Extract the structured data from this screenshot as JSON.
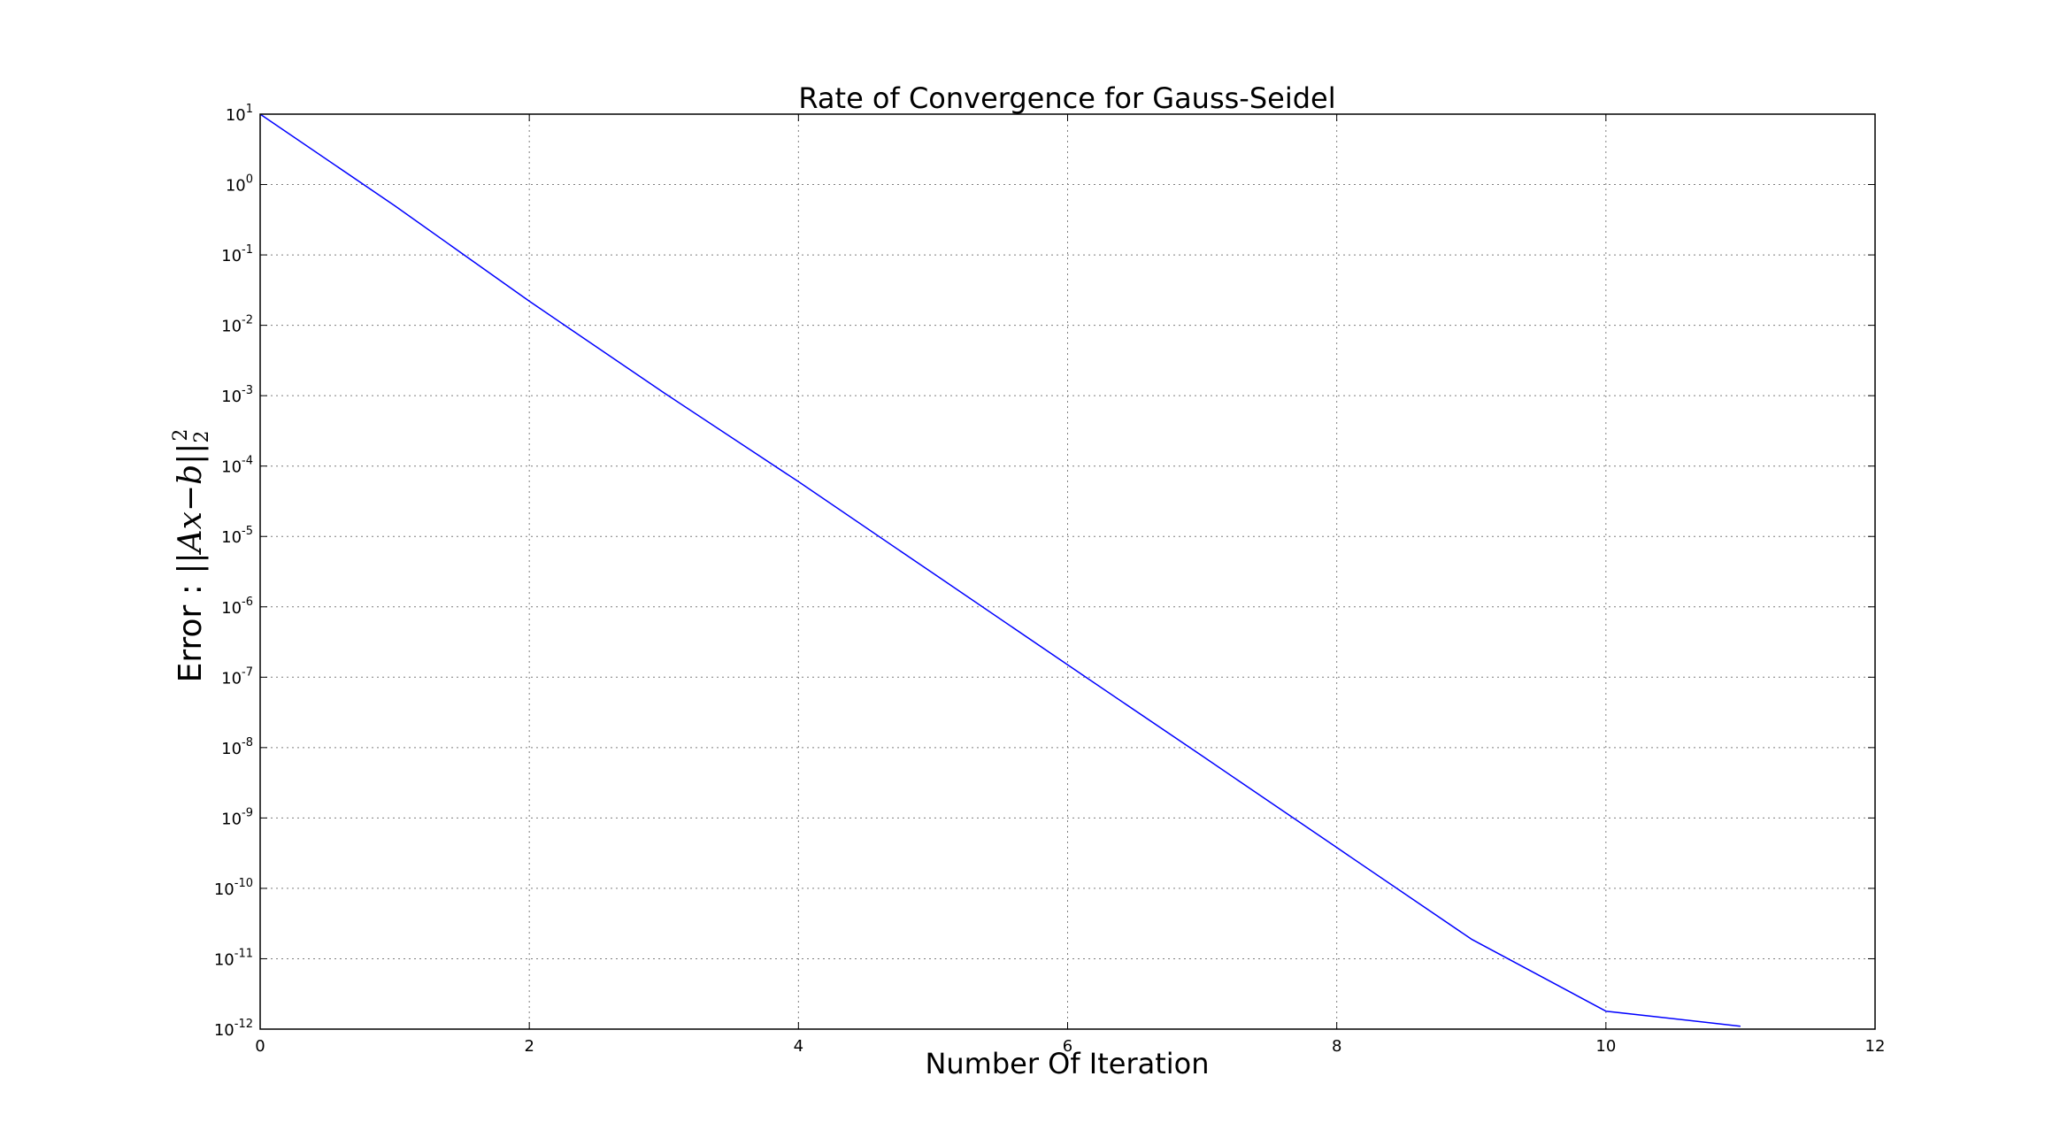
{
  "chart_data": {
    "type": "line",
    "title": "Rate of Convergence for Gauss-Seidel",
    "xlabel": "Number Of Iteration",
    "ylabel": {
      "prefix": "Error : ",
      "math_norm": "||",
      "math_body": "Ax",
      "math_minus": "−",
      "math_b": "b",
      "math_sub": "2",
      "math_sup": "2"
    },
    "x_scale": "linear",
    "y_scale": "log",
    "xlim": [
      0,
      12
    ],
    "ylim": [
      1e-12,
      10
    ],
    "x_ticks": [
      0,
      2,
      4,
      6,
      8,
      10,
      12
    ],
    "x_tick_labels": [
      "0",
      "2",
      "4",
      "6",
      "8",
      "10",
      "12"
    ],
    "y_ticks": [
      {
        "value": 10.0,
        "base": "10",
        "exp": "1"
      },
      {
        "value": 1.0,
        "base": "10",
        "exp": "0"
      },
      {
        "value": 0.1,
        "base": "10",
        "exp": "-1"
      },
      {
        "value": 0.01,
        "base": "10",
        "exp": "-2"
      },
      {
        "value": 0.001,
        "base": "10",
        "exp": "-3"
      },
      {
        "value": 0.0001,
        "base": "10",
        "exp": "-4"
      },
      {
        "value": 1e-05,
        "base": "10",
        "exp": "-5"
      },
      {
        "value": 1e-06,
        "base": "10",
        "exp": "-6"
      },
      {
        "value": 1e-07,
        "base": "10",
        "exp": "-7"
      },
      {
        "value": 1e-08,
        "base": "10",
        "exp": "-8"
      },
      {
        "value": 1e-09,
        "base": "10",
        "exp": "-9"
      },
      {
        "value": 1e-10,
        "base": "10",
        "exp": "-10"
      },
      {
        "value": 1e-11,
        "base": "10",
        "exp": "-11"
      },
      {
        "value": 1e-12,
        "base": "10",
        "exp": "-12"
      }
    ],
    "grid": true,
    "series": [
      {
        "color": "#0000ff",
        "x": [
          0,
          1,
          2,
          3,
          4,
          5,
          6,
          7,
          8,
          9,
          10,
          11
        ],
        "y": [
          10,
          0.5,
          0.022,
          0.0011,
          6e-05,
          3e-06,
          1.5e-07,
          7.6e-09,
          3.8e-10,
          1.9e-11,
          1.8e-12,
          1.1e-12
        ]
      }
    ]
  }
}
